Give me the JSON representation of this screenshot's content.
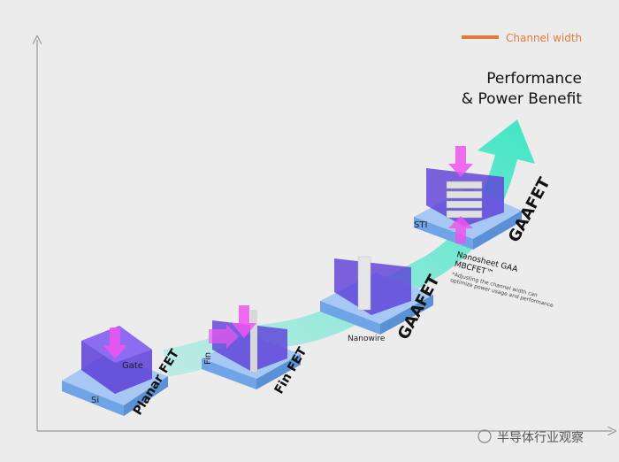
{
  "legend": {
    "label": "Channel width",
    "color": "#e07b3a"
  },
  "title": {
    "line1": "Performance",
    "line2": "& Power Benefit"
  },
  "stages": [
    {
      "name": "Planar FET",
      "labels": {
        "gate": "Gate",
        "substrate": "Si"
      }
    },
    {
      "name": "Fin FET",
      "labels": {
        "fin": "Fin"
      }
    },
    {
      "name": "GAAFET",
      "sublabel": "Nanowire"
    },
    {
      "name": "GAAFET",
      "labels": {
        "sti": "STI"
      },
      "sublabel": "Nanosheet GAA",
      "sublabel2": "MBCFET™",
      "note1": "*Adjusting the channel width can",
      "note2": "optimize power usage and performance"
    }
  ],
  "watermark": "半导体行业观察",
  "colors": {
    "arrow": "#3fe6c4",
    "gate": "#6a3fe0",
    "substrate": "#7fb3f0",
    "force": "#ee55f0"
  }
}
